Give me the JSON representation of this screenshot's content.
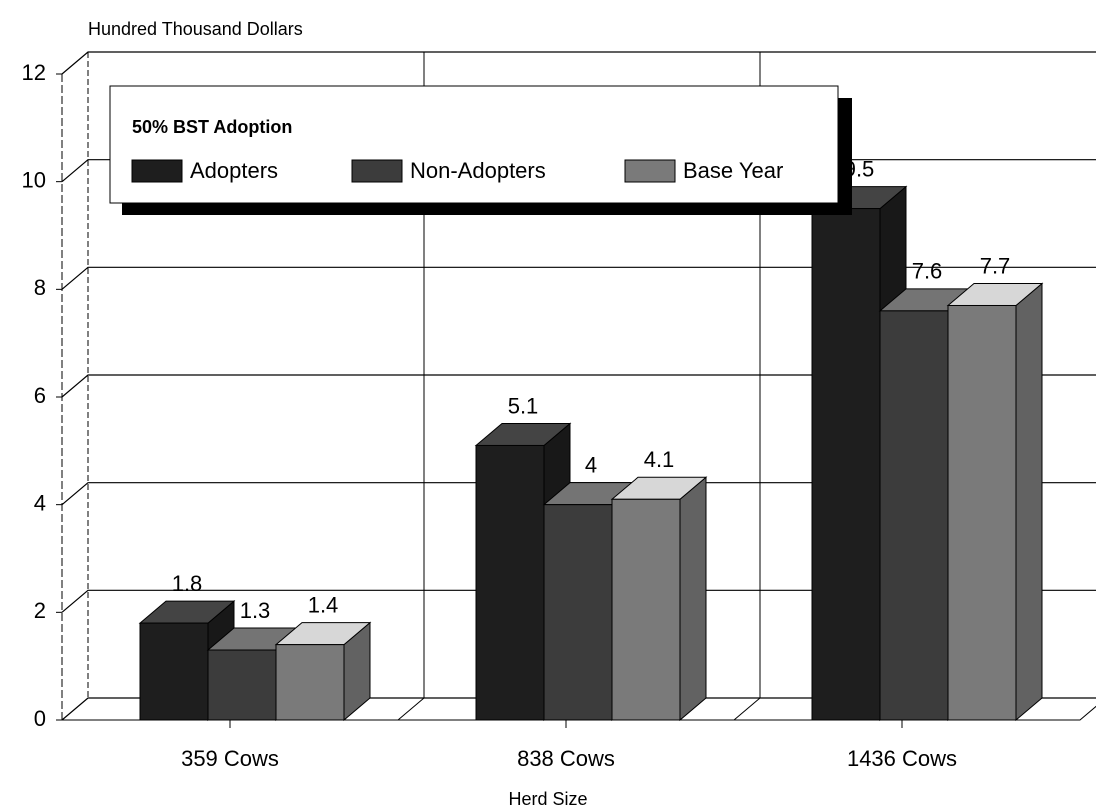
{
  "chart_data": {
    "type": "bar3d",
    "ylabel": "Hundred Thousand Dollars",
    "xlabel": "Herd Size",
    "legend_title": "50% BST Adoption",
    "categories": [
      "359 Cows",
      "838 Cows",
      "1436 Cows"
    ],
    "series": [
      {
        "name": "Adopters",
        "color": "#1e1e1e",
        "values": [
          1.8,
          5.1,
          9.5
        ]
      },
      {
        "name": "Non-Adopters",
        "color": "#3c3c3c",
        "values": [
          1.3,
          4,
          7.6
        ]
      },
      {
        "name": "Base Year",
        "color": "#7a7a7a",
        "values": [
          1.4,
          4.1,
          7.7
        ]
      }
    ],
    "ylim": [
      0,
      12
    ],
    "yticks": [
      0,
      2,
      4,
      6,
      8,
      10,
      12
    ],
    "grid": true
  }
}
